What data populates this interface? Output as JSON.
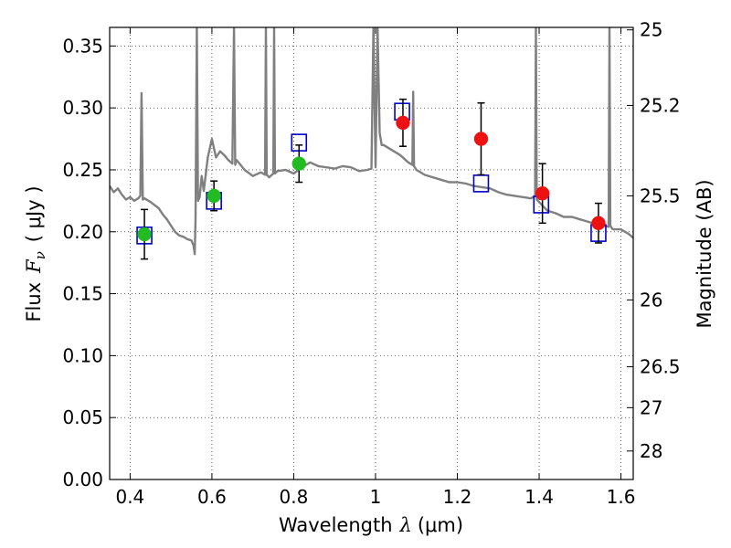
{
  "chart_data": {
    "type": "scatter",
    "title": "",
    "xlabel_pre": "Wavelength",
    "xlabel_sym": "λ",
    "xlabel_unit": "(μm)",
    "ylabel_pre": "Flux",
    "ylabel_sym": "F",
    "ylabel_sub": "ν",
    "ylabel_unit": "( μJy )",
    "y2label": "Magnitude (AB)",
    "xlim": [
      0.35,
      1.63
    ],
    "ylim": [
      0.0,
      0.365
    ],
    "grid": true,
    "legend": "none",
    "xticks": [
      0.4,
      0.6,
      0.8,
      1.0,
      1.2,
      1.4,
      1.6
    ],
    "xtick_labels": [
      "0.4",
      "0.6",
      "0.8",
      "1",
      "1.2",
      "1.4",
      "1.6"
    ],
    "yticks": [
      0.0,
      0.05,
      0.1,
      0.15,
      0.2,
      0.25,
      0.3,
      0.35
    ],
    "ytick_labels": [
      "0.00",
      "0.05",
      "0.10",
      "0.15",
      "0.20",
      "0.25",
      "0.30",
      "0.35"
    ],
    "y2ticks": [
      {
        "label": "25",
        "flux": 0.363
      },
      {
        "label": "25.2",
        "flux": 0.302
      },
      {
        "label": "25.5",
        "flux": 0.229
      },
      {
        "label": "26",
        "flux": 0.145
      },
      {
        "label": "26.5",
        "flux": 0.091
      },
      {
        "label": "27",
        "flux": 0.058
      },
      {
        "label": "28",
        "flux": 0.023
      }
    ],
    "series": [
      {
        "type": "line",
        "color": "#808080",
        "x": [
          0.35,
          0.36,
          0.37,
          0.38,
          0.39,
          0.4,
          0.41,
          0.42,
          0.425,
          0.428,
          0.431,
          0.435,
          0.45,
          0.47,
          0.48,
          0.49,
          0.5,
          0.51,
          0.52,
          0.53,
          0.54,
          0.55,
          0.555,
          0.558,
          0.56,
          0.563,
          0.566,
          0.57,
          0.575,
          0.58,
          0.59,
          0.6,
          0.61,
          0.62,
          0.63,
          0.64,
          0.65,
          0.654,
          0.657,
          0.66,
          0.68,
          0.7,
          0.72,
          0.73,
          0.732,
          0.734,
          0.74,
          0.75,
          0.752,
          0.754,
          0.76,
          0.78,
          0.8,
          0.82,
          0.84,
          0.86,
          0.88,
          0.9,
          0.92,
          0.94,
          0.96,
          0.98,
          0.99,
          0.995,
          1.0,
          1.005,
          1.01,
          1.015,
          1.02,
          1.04,
          1.06,
          1.08,
          1.09,
          1.092,
          1.094,
          1.1,
          1.12,
          1.14,
          1.16,
          1.18,
          1.2,
          1.22,
          1.24,
          1.26,
          1.28,
          1.3,
          1.32,
          1.34,
          1.36,
          1.38,
          1.39,
          1.392,
          1.394,
          1.4,
          1.42,
          1.44,
          1.46,
          1.48,
          1.5,
          1.52,
          1.54,
          1.56,
          1.57,
          1.572,
          1.574,
          1.58,
          1.6,
          1.62,
          1.63
        ],
        "y": [
          0.237,
          0.232,
          0.235,
          0.23,
          0.226,
          0.228,
          0.225,
          0.227,
          0.229,
          0.312,
          0.226,
          0.227,
          0.224,
          0.219,
          0.214,
          0.21,
          0.205,
          0.2,
          0.197,
          0.196,
          0.194,
          0.193,
          0.189,
          0.182,
          0.21,
          0.365,
          0.225,
          0.228,
          0.245,
          0.233,
          0.26,
          0.275,
          0.26,
          0.265,
          0.262,
          0.258,
          0.255,
          0.365,
          0.254,
          0.258,
          0.25,
          0.245,
          0.248,
          0.246,
          0.365,
          0.246,
          0.244,
          0.247,
          0.365,
          0.247,
          0.249,
          0.25,
          0.247,
          0.252,
          0.256,
          0.253,
          0.252,
          0.251,
          0.253,
          0.252,
          0.249,
          0.25,
          0.251,
          0.365,
          0.252,
          0.365,
          0.28,
          0.27,
          0.27,
          0.266,
          0.262,
          0.256,
          0.254,
          0.313,
          0.253,
          0.25,
          0.246,
          0.244,
          0.242,
          0.24,
          0.24,
          0.239,
          0.237,
          0.236,
          0.235,
          0.232,
          0.23,
          0.229,
          0.228,
          0.227,
          0.229,
          0.365,
          0.226,
          0.224,
          0.217,
          0.215,
          0.212,
          0.212,
          0.21,
          0.208,
          0.206,
          0.205,
          0.204,
          0.365,
          0.205,
          0.202,
          0.202,
          0.198,
          0.195
        ]
      },
      {
        "type": "open-square",
        "color": "#0000cc",
        "x": [
          0.435,
          0.605,
          0.813,
          1.065,
          1.258,
          1.405,
          1.545
        ],
        "y": [
          0.197,
          0.225,
          0.272,
          0.297,
          0.239,
          0.222,
          0.199
        ]
      },
      {
        "type": "filled-circle",
        "color": "#22bb22",
        "x": [
          0.435,
          0.605,
          0.813
        ],
        "y": [
          0.198,
          0.229,
          0.255
        ],
        "yerr": [
          0.02,
          0.012,
          0.015
        ]
      },
      {
        "type": "filled-circle",
        "color": "#ee1111",
        "x": [
          1.067,
          1.258,
          1.408,
          1.545
        ],
        "y": [
          0.288,
          0.275,
          0.231,
          0.207
        ],
        "yerr": [
          0.019,
          0.029,
          0.024,
          0.016
        ]
      }
    ]
  }
}
